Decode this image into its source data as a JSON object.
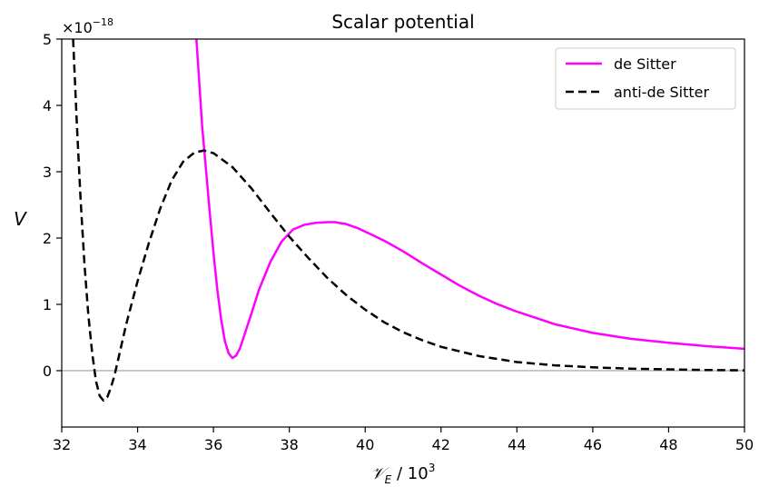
{
  "chart_data": {
    "type": "line",
    "title": "Scalar potential",
    "xlabel_main": "𝒱",
    "xlabel_sub": "E",
    "xlabel_rest": " / 10",
    "xlabel_sup": "3",
    "ylabel": "V",
    "y_offset_text": "×10",
    "y_offset_exp": "−18",
    "xlim": [
      32,
      50
    ],
    "ylim": [
      -0.85,
      5
    ],
    "x_ticks": [
      32,
      34,
      36,
      38,
      40,
      42,
      44,
      46,
      48,
      50
    ],
    "y_ticks": [
      0,
      1,
      2,
      3,
      4,
      5
    ],
    "grid": false,
    "legend_position": "top-right",
    "zero_line": true,
    "series": [
      {
        "name": "de Sitter",
        "color": "#ff00ff",
        "dash": "solid",
        "x": [
          35.55,
          35.62,
          35.7,
          35.8,
          35.9,
          36.0,
          36.1,
          36.2,
          36.3,
          36.4,
          36.5,
          36.6,
          36.7,
          36.8,
          37.0,
          37.2,
          37.5,
          37.8,
          38.1,
          38.4,
          38.7,
          39.0,
          39.2,
          39.5,
          39.8,
          40.1,
          40.5,
          41.0,
          41.5,
          42.0,
          42.5,
          43.0,
          43.5,
          44.0,
          45.0,
          46.0,
          47.0,
          48.0,
          49.0,
          50.0
        ],
        "y": [
          5.0,
          4.4,
          3.7,
          3.05,
          2.4,
          1.78,
          1.23,
          0.78,
          0.45,
          0.26,
          0.19,
          0.23,
          0.34,
          0.51,
          0.86,
          1.22,
          1.64,
          1.95,
          2.13,
          2.2,
          2.23,
          2.24,
          2.24,
          2.21,
          2.15,
          2.07,
          1.96,
          1.8,
          1.62,
          1.45,
          1.28,
          1.13,
          1.0,
          0.89,
          0.7,
          0.57,
          0.48,
          0.42,
          0.37,
          0.33
        ]
      },
      {
        "name": "anti-de Sitter",
        "color": "#000000",
        "dash": "dashed",
        "x": [
          32.3,
          32.4,
          32.5,
          32.6,
          32.7,
          32.8,
          32.9,
          33.0,
          33.1,
          33.2,
          33.3,
          33.4,
          33.5,
          33.7,
          34.0,
          34.3,
          34.6,
          34.9,
          35.2,
          35.5,
          35.75,
          36.0,
          36.5,
          37.0,
          37.5,
          38.0,
          38.5,
          39.0,
          39.5,
          40.0,
          40.5,
          41.0,
          41.5,
          42.0,
          43.0,
          44.0,
          45.0,
          46.0,
          47.0,
          48.0,
          49.0,
          50.0
        ],
        "y": [
          5.0,
          3.7,
          2.55,
          1.6,
          0.85,
          0.28,
          -0.15,
          -0.38,
          -0.45,
          -0.4,
          -0.25,
          -0.05,
          0.2,
          0.7,
          1.35,
          1.93,
          2.45,
          2.87,
          3.15,
          3.29,
          3.32,
          3.28,
          3.07,
          2.75,
          2.38,
          2.02,
          1.7,
          1.4,
          1.14,
          0.92,
          0.73,
          0.58,
          0.46,
          0.36,
          0.22,
          0.13,
          0.08,
          0.05,
          0.03,
          0.02,
          0.01,
          0.005
        ]
      }
    ]
  }
}
